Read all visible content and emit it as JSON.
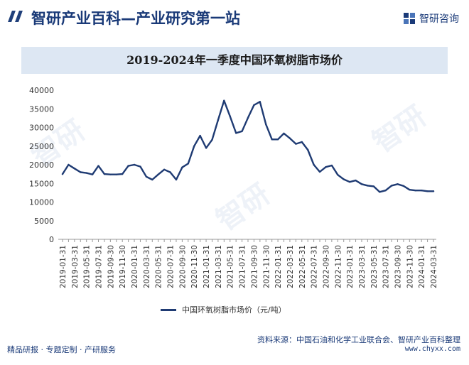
{
  "header": {
    "site_title": "智研产业百科—产业研究第一站",
    "logo_text": "智研咨询"
  },
  "footer": {
    "source": "资料来源：中国石油和化学工业联合会、智研产业百科整理",
    "left_text": "精品研报 · 专题定制 · 产研服务",
    "url": "www.chyxx.com"
  },
  "colors": {
    "brand": "#1a3a78",
    "line": "#1f3b73",
    "title_bg": "#dde7f3"
  },
  "chart_data": {
    "type": "line",
    "title": "2019-2024年一季度中国环氧树脂市场价",
    "xlabel": "",
    "ylabel": "",
    "ylim": [
      0,
      40000
    ],
    "yticks": [
      0,
      5000,
      10000,
      15000,
      20000,
      25000,
      30000,
      35000,
      40000
    ],
    "grid": false,
    "legend_position": "bottom-center",
    "x": [
      "2019-01-31",
      "2019-02-28",
      "2019-03-31",
      "2019-04-30",
      "2019-05-31",
      "2019-06-30",
      "2019-07-31",
      "2019-08-31",
      "2019-09-30",
      "2019-10-31",
      "2019-11-30",
      "2019-12-31",
      "2020-01-31",
      "2020-02-29",
      "2020-03-31",
      "2020-04-30",
      "2020-05-31",
      "2020-06-30",
      "2020-07-31",
      "2020-08-31",
      "2020-09-30",
      "2020-10-31",
      "2020-11-30",
      "2020-12-31",
      "2021-01-31",
      "2021-02-28",
      "2021-03-31",
      "2021-04-30",
      "2021-05-31",
      "2021-06-30",
      "2021-07-31",
      "2021-08-31",
      "2021-09-30",
      "2021-10-31",
      "2021-11-30",
      "2021-12-31",
      "2022-01-31",
      "2022-02-28",
      "2022-03-31",
      "2022-04-30",
      "2022-05-31",
      "2022-06-30",
      "2022-07-31",
      "2022-08-31",
      "2022-09-30",
      "2022-10-31",
      "2022-11-30",
      "2022-12-31",
      "2023-01-31",
      "2023-02-28",
      "2023-03-31",
      "2023-04-30",
      "2023-05-31",
      "2023-06-30",
      "2023-07-31",
      "2023-08-31",
      "2023-09-30",
      "2023-10-31",
      "2023-11-30",
      "2023-12-31",
      "2024-01-31",
      "2024-02-29",
      "2024-03-31"
    ],
    "xtick_labels": [
      "2019-01-31",
      "2019-03-31",
      "2019-05-31",
      "2019-07-31",
      "2019-09-30",
      "2019-11-30",
      "2020-01-31",
      "2020-03-31",
      "2020-05-31",
      "2020-07-31",
      "2020-09-30",
      "2020-11-30",
      "2021-01-31",
      "2021-03-31",
      "2021-05-31",
      "2021-07-31",
      "2021-09-30",
      "2021-11-30",
      "2022-01-31",
      "2022-03-31",
      "2022-05-31",
      "2022-07-31",
      "2022-09-30",
      "2022-11-30",
      "2023-01-31",
      "2023-03-31",
      "2023-05-31",
      "2023-07-31",
      "2023-09-30",
      "2023-11-30",
      "2024-01-31",
      "2024-03-31"
    ],
    "series": [
      {
        "name": "中国环氧树脂市场价（元/吨）",
        "values": [
          17500,
          20000,
          19000,
          18000,
          17800,
          17400,
          19700,
          17500,
          17400,
          17400,
          17500,
          19700,
          20000,
          19500,
          16800,
          16000,
          17400,
          18700,
          18000,
          16000,
          19300,
          20300,
          25000,
          27800,
          24500,
          26700,
          32000,
          37200,
          33000,
          28500,
          29000,
          32600,
          36000,
          36900,
          30800,
          26800,
          26800,
          28400,
          27100,
          25600,
          26100,
          24000,
          20000,
          18100,
          19400,
          19800,
          17300,
          16100,
          15400,
          15800,
          14800,
          14400,
          14200,
          12700,
          13100,
          14400,
          14800,
          14300,
          13300,
          13100,
          13100,
          12900,
          12900
        ]
      }
    ]
  }
}
